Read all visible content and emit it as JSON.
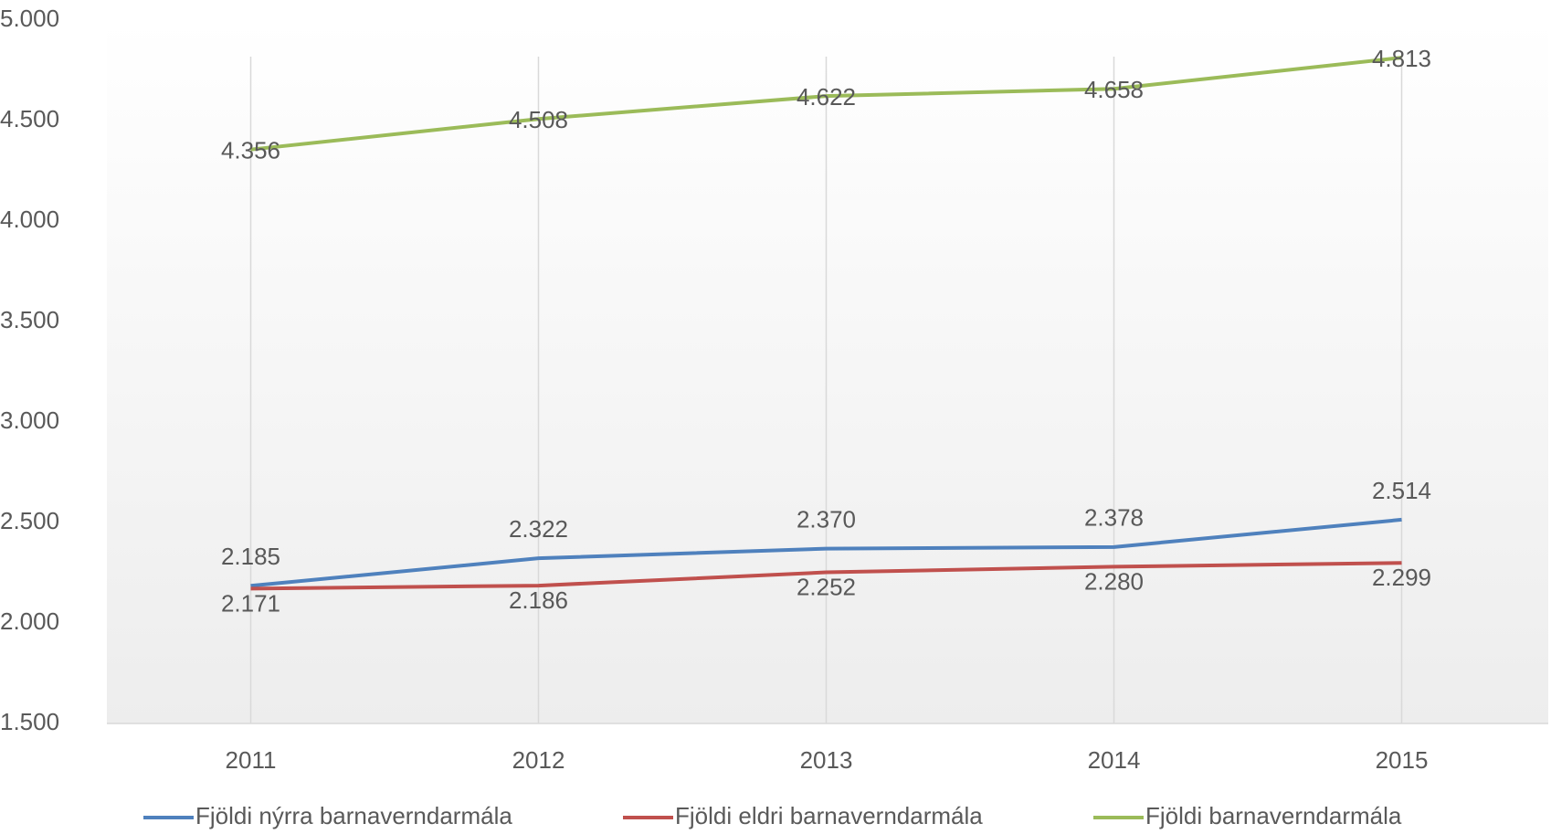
{
  "chart_data": {
    "type": "line",
    "categories": [
      "2011",
      "2012",
      "2013",
      "2014",
      "2015"
    ],
    "series": [
      {
        "name": "Fjöldi nýrra barnaverndarmála",
        "color": "#4f81bd",
        "values": [
          2185,
          2322,
          2370,
          2378,
          2514
        ],
        "value_labels": [
          "2.185",
          "2.322",
          "2.370",
          "2.378",
          "2.514"
        ]
      },
      {
        "name": "Fjöldi eldri barnaverndarmála",
        "color": "#c0504d",
        "values": [
          2171,
          2186,
          2252,
          2280,
          2299
        ],
        "value_labels": [
          "2.171",
          "2.186",
          "2.252",
          "2.280",
          "2.299"
        ]
      },
      {
        "name": "Fjöldi barnaverndarmála",
        "color": "#9bbb59",
        "values": [
          4356,
          4508,
          4622,
          4658,
          4813
        ],
        "value_labels": [
          "4.356",
          "4.508",
          "4.622",
          "4.658",
          "4.813"
        ]
      }
    ],
    "ylim": [
      1500,
      5000
    ],
    "yticks": [
      {
        "value": 1500,
        "label": "1.500"
      },
      {
        "value": 2000,
        "label": "2.000"
      },
      {
        "value": 2500,
        "label": "2.500"
      },
      {
        "value": 3000,
        "label": "3.000"
      },
      {
        "value": 3500,
        "label": "3.500"
      },
      {
        "value": 4000,
        "label": "4.000"
      },
      {
        "value": 4500,
        "label": "4.500"
      },
      {
        "value": 5000,
        "label": "5.000"
      }
    ],
    "grid": true,
    "legend": "bottom"
  }
}
